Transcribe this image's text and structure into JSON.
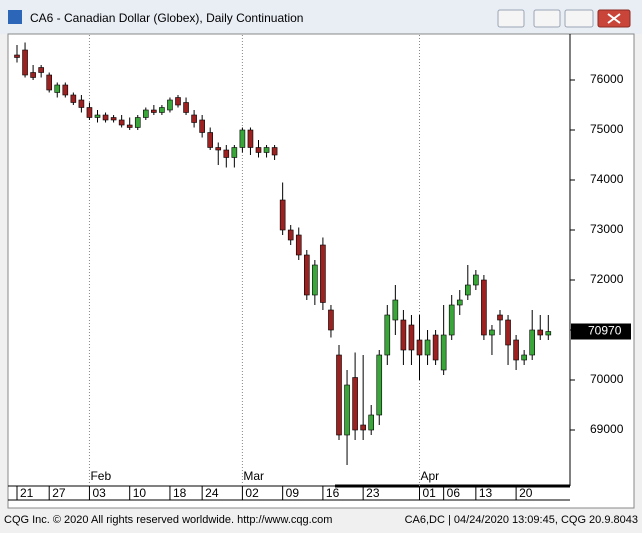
{
  "chart_data": {
    "type": "candlestick",
    "title": "CA6 - Canadian Dollar (Globex), Daily Continuation",
    "footer_left": "CQG Inc. © 2020 All rights reserved worldwide. http://www.cqg.com",
    "footer_right": "CA6,DC | 04/24/2020 13:09:45, CQG 20.9.8043",
    "categories": [
      "21",
      null,
      null,
      null,
      "27",
      null,
      null,
      null,
      null,
      "03",
      null,
      null,
      null,
      null,
      "10",
      null,
      null,
      null,
      null,
      "18",
      null,
      null,
      null,
      "24",
      null,
      null,
      null,
      null,
      "02",
      null,
      null,
      null,
      null,
      "09",
      null,
      null,
      null,
      null,
      "16",
      null,
      null,
      null,
      null,
      "23",
      null,
      null,
      null,
      null,
      null,
      null,
      "01",
      null,
      null,
      "06",
      null,
      null,
      null,
      "13",
      null,
      null,
      null,
      null,
      "20",
      null,
      null,
      null,
      null
    ],
    "months": [
      null,
      null,
      null,
      null,
      null,
      null,
      null,
      null,
      null,
      "Feb",
      null,
      null,
      null,
      null,
      null,
      null,
      null,
      null,
      null,
      null,
      null,
      null,
      null,
      null,
      null,
      null,
      null,
      null,
      "Mar",
      null,
      null,
      null,
      null,
      null,
      null,
      null,
      null,
      null,
      null,
      null,
      null,
      null,
      null,
      null,
      null,
      null,
      null,
      null,
      null,
      null,
      "Apr",
      null,
      null,
      null,
      null,
      null,
      null,
      null,
      null,
      null,
      null,
      null,
      null,
      null,
      null,
      null,
      null
    ],
    "open": [
      76500,
      76600,
      76150,
      76250,
      76100,
      75750,
      75900,
      75700,
      75600,
      75450,
      75250,
      75300,
      75250,
      75200,
      75100,
      75050,
      75250,
      75400,
      75350,
      75400,
      75650,
      75550,
      75300,
      75200,
      74950,
      74650,
      74600,
      74450,
      74650,
      75000,
      74650,
      74550,
      74650,
      73600,
      73000,
      72900,
      72500,
      71700,
      72700,
      71400,
      70500,
      68900,
      70050,
      69100,
      69000,
      69300,
      70500,
      71200,
      71200,
      71100,
      70800,
      70500,
      70900,
      70200,
      70900,
      71500,
      71700,
      71900,
      72000,
      70900,
      71300,
      71200,
      70800,
      70400,
      70500,
      71000,
      70900
    ],
    "high": [
      76700,
      76750,
      76300,
      76300,
      76150,
      75950,
      75950,
      75750,
      75700,
      75550,
      75400,
      75350,
      75300,
      75300,
      75250,
      75300,
      75450,
      75500,
      75500,
      75650,
      75700,
      75650,
      75400,
      75300,
      75050,
      74750,
      74700,
      74700,
      75050,
      75050,
      74800,
      74700,
      74700,
      73950,
      73100,
      73050,
      72600,
      72400,
      72850,
      71500,
      70700,
      70200,
      70550,
      70500,
      69500,
      70600,
      71500,
      71900,
      71400,
      71300,
      71300,
      71000,
      71000,
      71500,
      71700,
      71800,
      72300,
      72200,
      72100,
      71100,
      71400,
      71300,
      70900,
      70600,
      71400,
      71300,
      71300
    ],
    "low": [
      76350,
      76050,
      76000,
      76050,
      75750,
      75650,
      75650,
      75500,
      75350,
      75200,
      75150,
      75150,
      75150,
      75050,
      75000,
      75000,
      75200,
      75300,
      75300,
      75350,
      75450,
      75300,
      75050,
      74850,
      74600,
      74300,
      74250,
      74250,
      74550,
      74500,
      74450,
      74450,
      74400,
      72900,
      72700,
      72400,
      71600,
      71500,
      71400,
      70850,
      68800,
      68300,
      68800,
      68800,
      68900,
      69100,
      70300,
      70900,
      70300,
      70300,
      70000,
      70300,
      70300,
      70100,
      70800,
      71300,
      71600,
      71800,
      70800,
      70500,
      70900,
      70300,
      70200,
      70300,
      70400,
      70800,
      70800
    ],
    "close": [
      76450,
      76100,
      76050,
      76150,
      75800,
      75900,
      75700,
      75550,
      75450,
      75250,
      75300,
      75200,
      75200,
      75100,
      75050,
      75250,
      75400,
      75350,
      75450,
      75600,
      75500,
      75350,
      75150,
      74950,
      74650,
      74600,
      74450,
      74650,
      75000,
      74650,
      74550,
      74650,
      74500,
      73000,
      72800,
      72500,
      71700,
      72300,
      71550,
      71000,
      68900,
      69900,
      69000,
      69000,
      69300,
      70500,
      71300,
      71600,
      70600,
      70600,
      70500,
      70800,
      70400,
      70900,
      71500,
      71600,
      71900,
      72100,
      70900,
      71000,
      71200,
      70700,
      70400,
      70500,
      71000,
      70900,
      70970
    ],
    "up_color": "#3aa63a",
    "down_color": "#9c2121",
    "ylim": [
      67900,
      76900
    ],
    "yticks": [
      69000,
      70000,
      71000,
      72000,
      73000,
      74000,
      75000,
      76000
    ],
    "last_price": 70970,
    "grid": true
  }
}
